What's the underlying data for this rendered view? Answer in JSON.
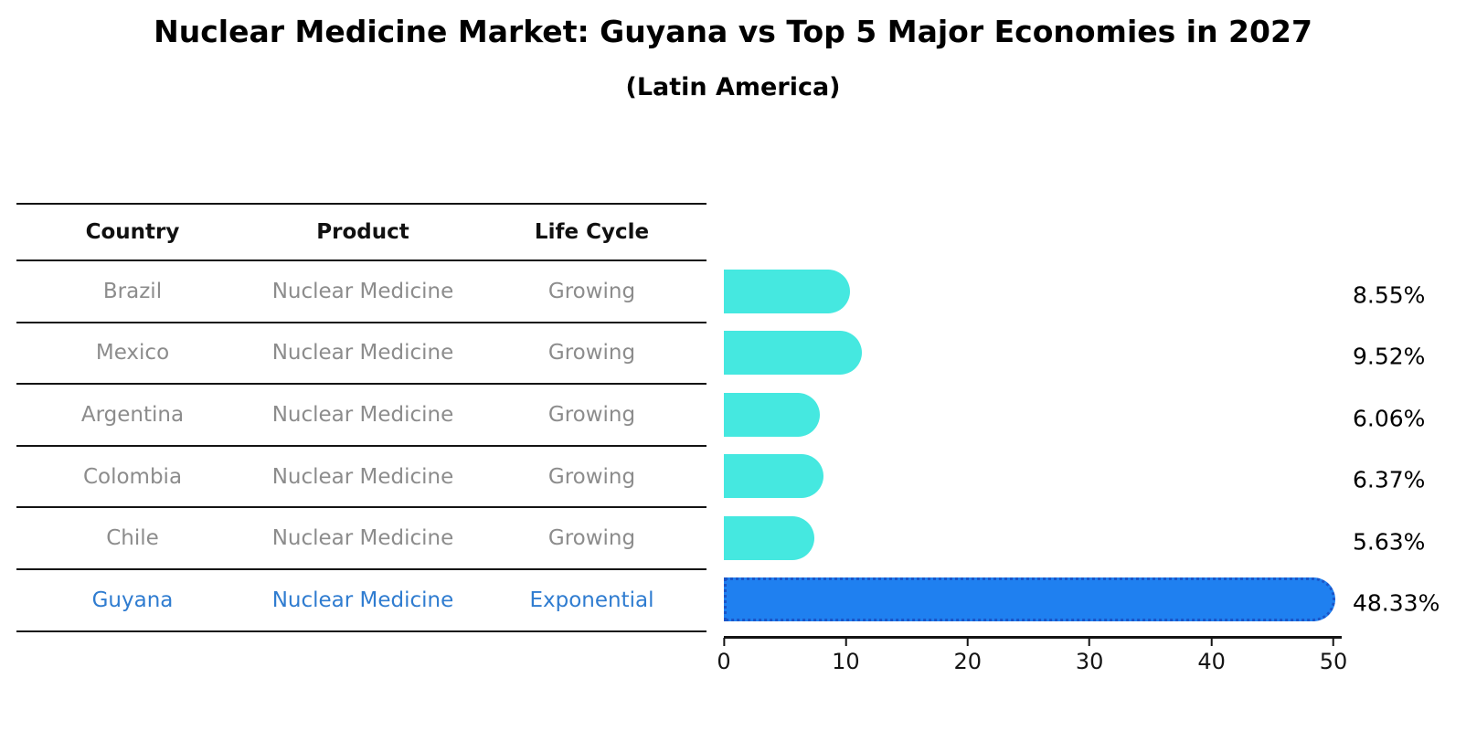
{
  "title": "Nuclear Medicine Market: Guyana vs Top 5 Major Economies in 2027",
  "subtitle": "(Latin America)",
  "table": {
    "headers": [
      "Country",
      "Product",
      "Life Cycle"
    ],
    "rows": [
      {
        "country": "Brazil",
        "product": "Nuclear Medicine",
        "life_cycle": "Growing"
      },
      {
        "country": "Mexico",
        "product": "Nuclear Medicine",
        "life_cycle": "Growing"
      },
      {
        "country": "Argentina",
        "product": "Nuclear Medicine",
        "life_cycle": "Growing"
      },
      {
        "country": "Colombia",
        "product": "Nuclear Medicine",
        "life_cycle": "Growing"
      },
      {
        "country": "Chile",
        "product": "Nuclear Medicine",
        "life_cycle": "Growing"
      },
      {
        "country": "Guyana",
        "product": "Nuclear Medicine",
        "life_cycle": "Exponential"
      }
    ]
  },
  "chart_data": {
    "type": "bar",
    "orientation": "horizontal",
    "title": "Nuclear Medicine Market: Guyana vs Top 5 Major Economies in 2027",
    "subtitle": "(Latin America)",
    "categories": [
      "Brazil",
      "Mexico",
      "Argentina",
      "Colombia",
      "Chile",
      "Guyana"
    ],
    "values": [
      8.55,
      9.52,
      6.06,
      6.37,
      5.63,
      48.33
    ],
    "value_labels": [
      "8.55%",
      "9.52%",
      "6.06%",
      "6.37%",
      "5.63%",
      "48.33%"
    ],
    "xlim": [
      0,
      50
    ],
    "xticks": [
      0,
      10,
      20,
      30,
      40,
      50
    ],
    "xtick_labels": [
      "0",
      "10",
      "20",
      "30",
      "40",
      "50"
    ],
    "grid": false,
    "legend": false,
    "highlight_index": 5,
    "bar_color": "#45E8E0",
    "highlight_bar_color": "#1F80F0",
    "highlight_border_color": "#1A55C8",
    "highlight_text_color": "#2F7CD0"
  },
  "colors": {
    "background": "#FFFFFF",
    "title_text": "#000000",
    "table_line": "#141414",
    "table_header_text": "#111111",
    "table_body_text": "#8C8C8C",
    "axis": "#141414",
    "value_label_text": "#000000"
  }
}
